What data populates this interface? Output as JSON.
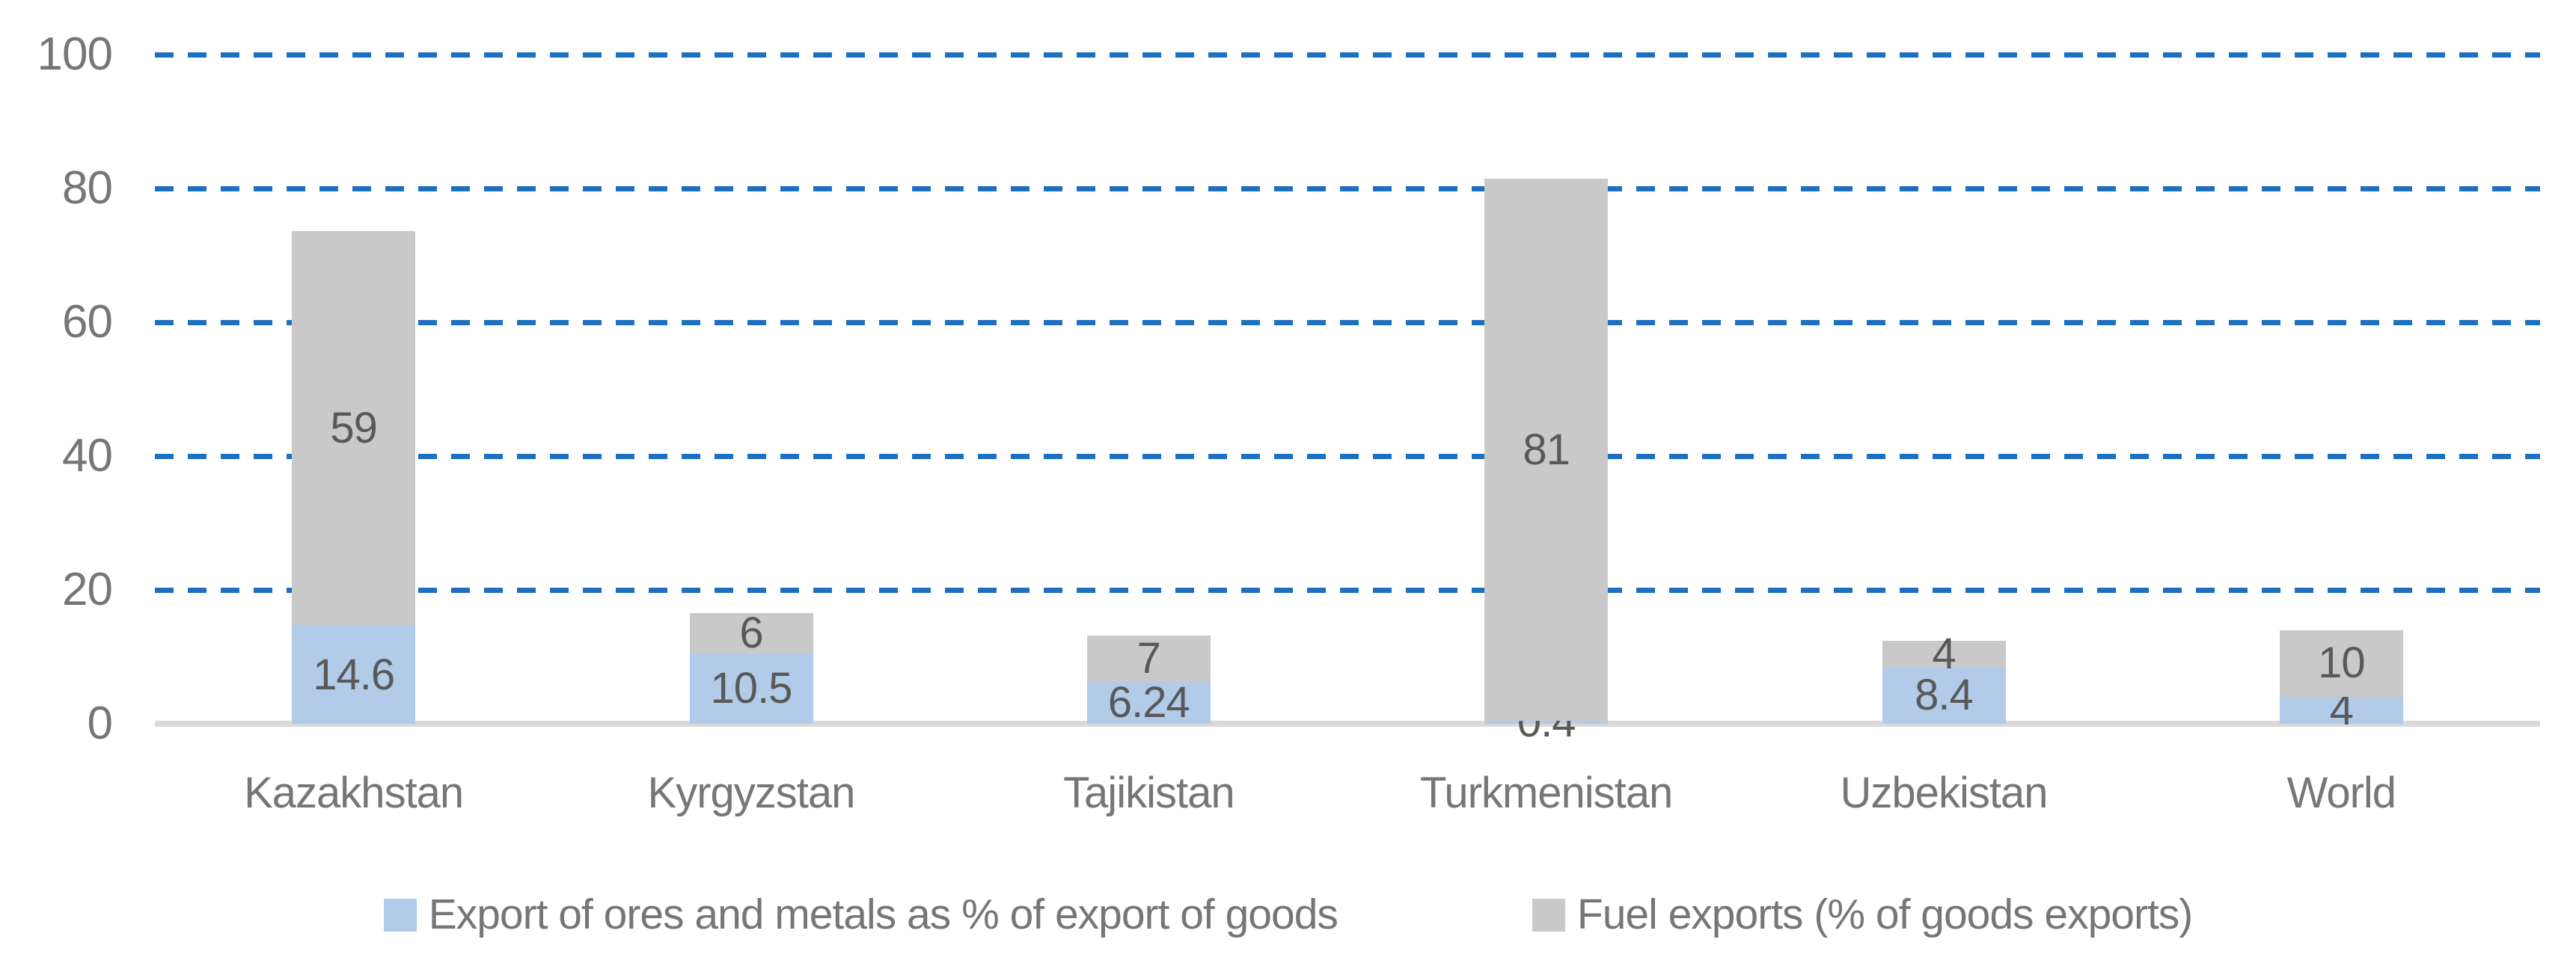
{
  "chart_data": {
    "type": "bar",
    "stacked": true,
    "title": "",
    "xlabel": "",
    "ylabel": "",
    "categories": [
      "Kazakhstan",
      "Kyrgyzstan",
      "Tajikistan",
      "Turkmenistan",
      "Uzbekistan",
      "World"
    ],
    "series": [
      {
        "name": "Export of ores and metals as % of export of goods",
        "color": "#b1cbe9",
        "values": [
          14.6,
          10.5,
          6.24,
          0.4,
          8.4,
          4
        ],
        "labels": [
          "14.6",
          "10.5",
          "6.24",
          "0.4",
          "8.4",
          "4"
        ]
      },
      {
        "name": "Fuel exports (% of goods exports)",
        "color": "#c9c9c9",
        "values": [
          59,
          6,
          7,
          81,
          4,
          10
        ],
        "labels": [
          "59",
          "6",
          "7",
          "81",
          "4",
          "10"
        ]
      }
    ],
    "y_ticks": [
      "0",
      "20",
      "40",
      "60",
      "80",
      "100"
    ],
    "ylim": [
      0,
      100
    ],
    "grid": "horizontal-dashed",
    "legend_position": "bottom",
    "colors": {
      "gridline": "#1d70c1",
      "axis_line": "#d9d9d9",
      "tick_label": "#767676",
      "category_label": "#767676",
      "data_label": "#595959",
      "legend_label": "#767676",
      "background": "#ffffff"
    }
  }
}
